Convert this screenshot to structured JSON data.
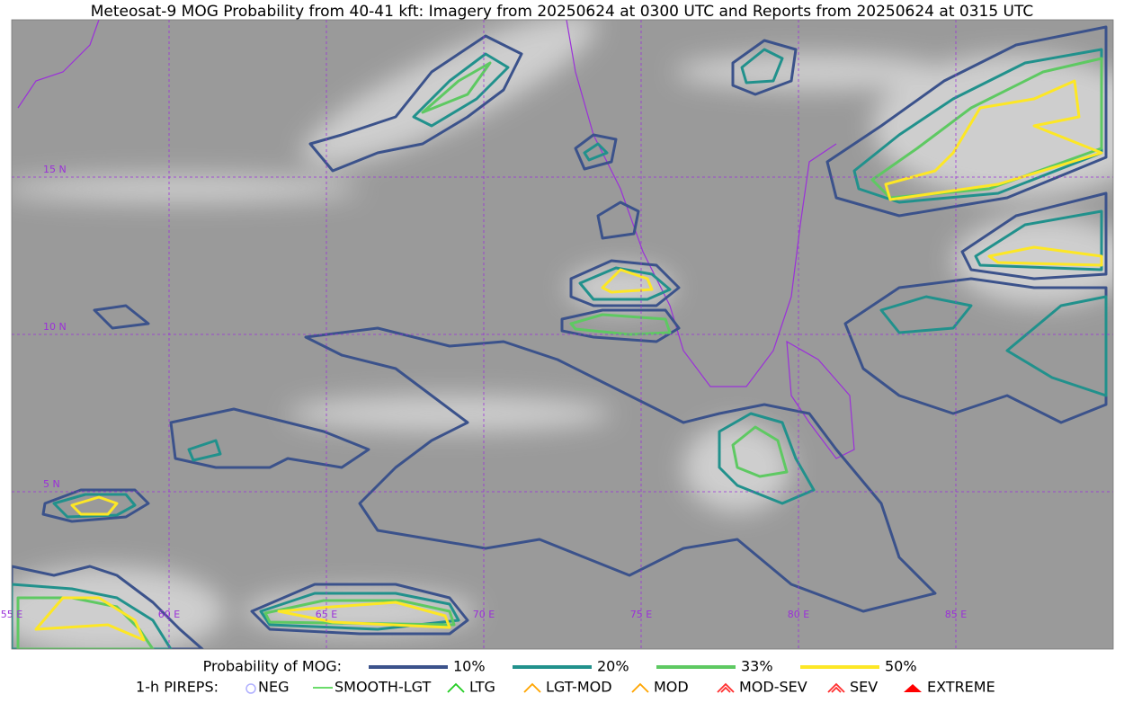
{
  "title": "Meteosat-9 MOG Probability from 40-41 kft: Imagery from 20250624 at 0300 UTC and Reports from 20250624 at 0315 UTC",
  "map": {
    "lat_labels": [
      "15 N",
      "10 N",
      "5 N"
    ],
    "lon_labels": [
      "55 E",
      "60 E",
      "65 E",
      "70 E",
      "75 E",
      "80 E",
      "85 E"
    ]
  },
  "legend": {
    "probability_title": "Probability of MOG:",
    "probability_levels": [
      "10%",
      "20%",
      "33%",
      "50%"
    ],
    "pireps_title": "1-h PIREPS:",
    "pireps": [
      "NEG",
      "SMOOTH-LGT",
      "LTG",
      "LGT-MOD",
      "MOD",
      "MOD-SEV",
      "SEV",
      "EXTREME"
    ]
  }
}
